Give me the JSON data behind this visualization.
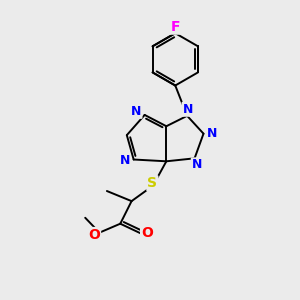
{
  "background_color": "#ebebeb",
  "bond_color": "#000000",
  "atom_colors": {
    "N": "#0000ff",
    "S": "#cccc00",
    "O": "#ff0000",
    "F": "#ff00ff",
    "C": "#000000"
  },
  "figsize": [
    3.0,
    3.0
  ],
  "dpi": 100
}
